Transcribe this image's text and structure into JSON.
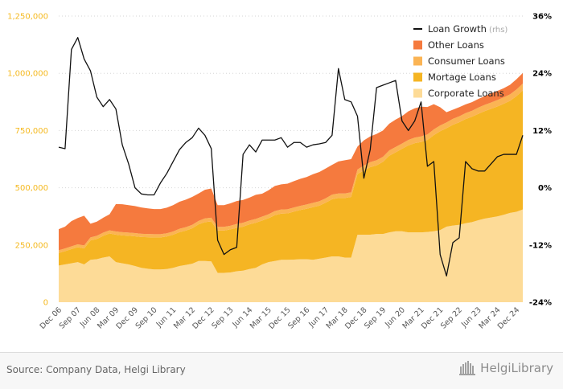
{
  "chart_data": {
    "type": "area",
    "x_ticks": [
      "Dec 06",
      "Sep 07",
      "Jun 08",
      "Mar 09",
      "Dec 09",
      "Sep 10",
      "Jun 11",
      "Mar 12",
      "Dec 12",
      "Sep 13",
      "Jun 14",
      "Mar 15",
      "Dec 15",
      "Sep 16",
      "Jun 17",
      "Mar 18",
      "Dec 18",
      "Sep 19",
      "Jun 20",
      "Mar 21",
      "Dec 21",
      "Sep 22",
      "Jun 23",
      "Mar 24",
      "Dec 24"
    ],
    "quarters_from": "Dec 06",
    "left_axis": {
      "ylim": [
        0,
        1250000
      ],
      "ticks": [
        "0",
        "250,000",
        "500,000",
        "750,000",
        "1,000,000",
        "1,250,000"
      ],
      "tick_values": [
        0,
        250000,
        500000,
        750000,
        1000000,
        1250000
      ],
      "color": "#f5b91f"
    },
    "right_axis": {
      "ylim": [
        -24,
        36
      ],
      "ticks": [
        "-24%",
        "-12%",
        "0%",
        "12%",
        "24%",
        "36%"
      ],
      "tick_values": [
        -24,
        -12,
        0,
        12,
        24,
        36
      ],
      "color": "#000000"
    },
    "series": [
      {
        "name": "Corporate Loans",
        "color": "#fddb97",
        "values": [
          160000,
          165000,
          170000,
          175000,
          165000,
          185000,
          188000,
          195000,
          200000,
          175000,
          170000,
          165000,
          158000,
          150000,
          146000,
          143000,
          143000,
          145000,
          150000,
          158000,
          163000,
          168000,
          180000,
          180000,
          178000,
          128000,
          128000,
          130000,
          135000,
          138000,
          145000,
          150000,
          165000,
          175000,
          180000,
          185000,
          185000,
          186000,
          188000,
          188000,
          185000,
          190000,
          195000,
          200000,
          200000,
          195000,
          195000,
          295000,
          295000,
          295000,
          298000,
          298000,
          305000,
          310000,
          310000,
          305000,
          305000,
          305000,
          307000,
          310000,
          315000,
          330000,
          335000,
          338000,
          345000,
          350000,
          358000,
          365000,
          370000,
          375000,
          382000,
          390000,
          395000,
          405000
        ]
      },
      {
        "name": "Mortage Loans",
        "color": "#f5b523",
        "values": [
          55000,
          58000,
          62000,
          65000,
          70000,
          85000,
          88000,
          95000,
          100000,
          120000,
          122000,
          125000,
          130000,
          135000,
          138000,
          140000,
          140000,
          142000,
          145000,
          148000,
          150000,
          155000,
          160000,
          170000,
          175000,
          185000,
          185000,
          188000,
          190000,
          192000,
          195000,
          197000,
          192000,
          192000,
          200000,
          202000,
          203000,
          210000,
          215000,
          220000,
          230000,
          232000,
          240000,
          250000,
          255000,
          260000,
          265000,
          265000,
          280000,
          295000,
          300000,
          315000,
          335000,
          345000,
          360000,
          380000,
          390000,
          395000,
          402000,
          420000,
          432000,
          430000,
          440000,
          448000,
          455000,
          460000,
          465000,
          470000,
          475000,
          480000,
          485000,
          490000,
          505000,
          520000
        ]
      },
      {
        "name": "Consumer Loans",
        "color": "#fbb454",
        "values": [
          12000,
          12000,
          12000,
          13000,
          13000,
          13000,
          14000,
          14000,
          14000,
          14000,
          14000,
          14000,
          14000,
          14000,
          14000,
          14000,
          14000,
          14000,
          14000,
          15000,
          15000,
          15000,
          15000,
          16000,
          16000,
          16000,
          16000,
          16000,
          17000,
          17000,
          17000,
          17000,
          17000,
          17000,
          18000,
          18000,
          18000,
          18000,
          18000,
          19000,
          19000,
          19000,
          19000,
          20000,
          20000,
          20000,
          20000,
          20000,
          22000,
          22000,
          22000,
          22000,
          23000,
          23000,
          23000,
          24000,
          24000,
          24000,
          24000,
          25000,
          25000,
          25000,
          26000,
          26000,
          26000,
          26000,
          27000,
          27000,
          27000,
          28000,
          28000,
          28000,
          29000,
          30000
        ]
      },
      {
        "name": "Other Loans",
        "color": "#f57a3e",
        "values": [
          92000,
          95000,
          110000,
          115000,
          130000,
          60000,
          62000,
          65000,
          70000,
          120000,
          122000,
          120000,
          118000,
          115000,
          112000,
          110000,
          110000,
          112000,
          115000,
          118000,
          120000,
          122000,
          120000,
          125000,
          128000,
          95000,
          95000,
          98000,
          100000,
          100000,
          100000,
          105000,
          100000,
          105000,
          110000,
          110000,
          112000,
          115000,
          118000,
          120000,
          125000,
          128000,
          130000,
          130000,
          140000,
          145000,
          145000,
          100000,
          110000,
          112000,
          115000,
          115000,
          117000,
          120000,
          120000,
          125000,
          128000,
          130000,
          120000,
          110000,
          80000,
          45000,
          40000,
          40000,
          38000,
          38000,
          38000,
          38000,
          40000,
          40000,
          40000,
          42000,
          45000,
          46000
        ]
      },
      {
        "name": "Loan Growth",
        "axis": "right",
        "type": "line",
        "color": "#111111",
        "values": [
          8.5,
          8.2,
          29,
          31.5,
          27,
          24.5,
          19,
          17,
          18.5,
          16.5,
          9,
          5,
          0,
          -1.3,
          -1.5,
          -1.5,
          1,
          3,
          5.5,
          8,
          9.5,
          10.5,
          12.5,
          11,
          8.2,
          -11,
          -14,
          -13,
          -12.5,
          7,
          9,
          7.5,
          10,
          10,
          10,
          10.5,
          8.5,
          9.5,
          9.5,
          8.5,
          9,
          9.2,
          9.5,
          11,
          25,
          18.5,
          18,
          15,
          2,
          8,
          21,
          21.5,
          22,
          22.5,
          14,
          12,
          14,
          18,
          4.5,
          5.5,
          -14,
          -18.5,
          -11.5,
          -10.5,
          5.5,
          4,
          3.5,
          3.5,
          5,
          6.5,
          7,
          7,
          7,
          11
        ]
      }
    ],
    "legend": [
      "Loan Growth (rhs)",
      "Other Loans",
      "Consumer Loans",
      "Mortage Loans",
      "Corporate Loans"
    ],
    "legend_position": "top-right",
    "grid": "horizontal-dotted"
  },
  "legend_items": [
    {
      "label": "Loan Growth",
      "suffix": " (rhs)",
      "swatch": "line",
      "color": "#111111"
    },
    {
      "label": "Other Loans",
      "suffix": "",
      "swatch": "box",
      "color": "#f57a3e"
    },
    {
      "label": "Consumer Loans",
      "suffix": "",
      "swatch": "box",
      "color": "#fbb454"
    },
    {
      "label": "Mortage Loans",
      "suffix": "",
      "swatch": "box",
      "color": "#f5b523"
    },
    {
      "label": "Corporate Loans",
      "suffix": "",
      "swatch": "box",
      "color": "#fddb97"
    }
  ],
  "footer": {
    "source": "Source: Company Data, Helgi Library",
    "brand": "HelgiLibrary"
  }
}
